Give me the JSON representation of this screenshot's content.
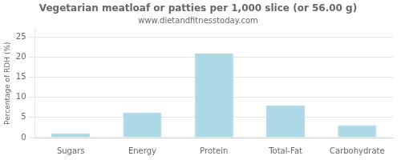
{
  "chart_data": {
    "type": "bar",
    "title": "Vegetarian meatloaf or patties per 1,000 slice (or 56.00 g)",
    "subtitle": "www.dietandfitnesstoday.com",
    "categories": [
      "Sugars",
      "Energy",
      "Protein",
      "Total-Fat",
      "Carbohydrate"
    ],
    "values": [
      1.0,
      6.2,
      20.9,
      8.0,
      3.1
    ],
    "color": "#add8e6",
    "ylabel": "Percentage of RDH (%)",
    "ylim": [
      0,
      27
    ],
    "yticks": [
      0,
      5,
      10,
      15,
      20,
      25
    ],
    "grid": true
  }
}
